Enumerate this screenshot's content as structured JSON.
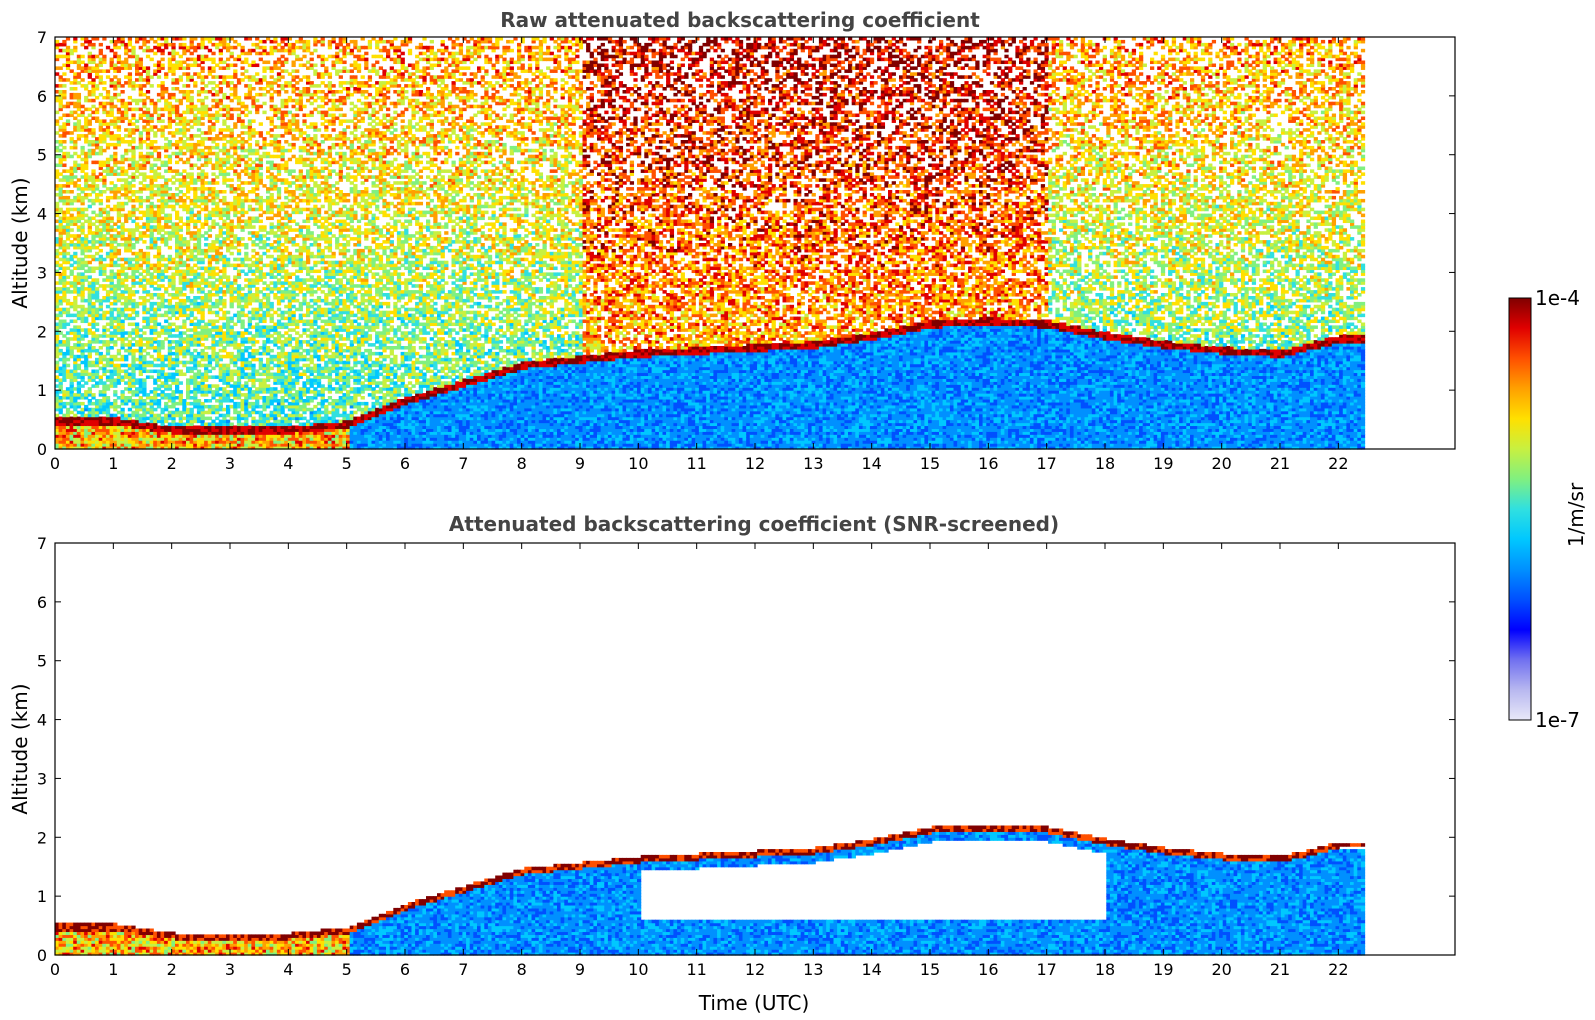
{
  "chart_data": [
    {
      "type": "heatmap",
      "title": "Raw attenuated backscattering coefficient",
      "xlabel": "",
      "ylabel": "Altitude (km)",
      "xlim": [
        0,
        24
      ],
      "ylim": [
        0,
        7
      ],
      "xticks": [
        "0",
        "1",
        "2",
        "3",
        "4",
        "5",
        "6",
        "7",
        "8",
        "9",
        "10",
        "11",
        "12",
        "13",
        "14",
        "15",
        "16",
        "17",
        "18",
        "19",
        "20",
        "21",
        "22"
      ],
      "yticks": [
        "0",
        "1",
        "2",
        "3",
        "4",
        "5",
        "6",
        "7"
      ],
      "data_end_x": 22.45,
      "layers": [
        {
          "name": "boundary-layer",
          "x": [
            0,
            1,
            2,
            3,
            4,
            5,
            6,
            7,
            8,
            9,
            10,
            11,
            12,
            13,
            14,
            15,
            16,
            17,
            18,
            19,
            20,
            21,
            22
          ],
          "y": [
            0.45,
            0.45,
            0.3,
            0.3,
            0.3,
            0.4,
            0.8,
            1.1,
            1.4,
            1.5,
            1.6,
            1.65,
            1.7,
            1.75,
            1.9,
            2.1,
            2.15,
            2.1,
            1.9,
            1.75,
            1.65,
            1.6,
            1.85
          ]
        }
      ]
    },
    {
      "type": "heatmap",
      "title": "Attenuated backscattering coefficient (SNR-screened)",
      "xlabel": "Time (UTC)",
      "ylabel": "Altitude (km)",
      "xlim": [
        0,
        24
      ],
      "ylim": [
        0,
        7
      ],
      "xticks": [
        "0",
        "1",
        "2",
        "3",
        "4",
        "5",
        "6",
        "7",
        "8",
        "9",
        "10",
        "11",
        "12",
        "13",
        "14",
        "15",
        "16",
        "17",
        "18",
        "19",
        "20",
        "21",
        "22"
      ],
      "yticks": [
        "0",
        "1",
        "2",
        "3",
        "4",
        "5",
        "6",
        "7"
      ],
      "data_end_x": 22.45
    }
  ],
  "colorbar": {
    "max_label": "1e-4",
    "min_label": "1e-7",
    "unit": "1/m/sr",
    "colors": [
      "#e8e8f8",
      "#b8b8f0",
      "#7070f0",
      "#0000ff",
      "#0050ff",
      "#0090ff",
      "#00c8ff",
      "#30e0e0",
      "#80f080",
      "#c8f040",
      "#ffe000",
      "#ffa000",
      "#ff5000",
      "#e00000",
      "#800000"
    ]
  }
}
